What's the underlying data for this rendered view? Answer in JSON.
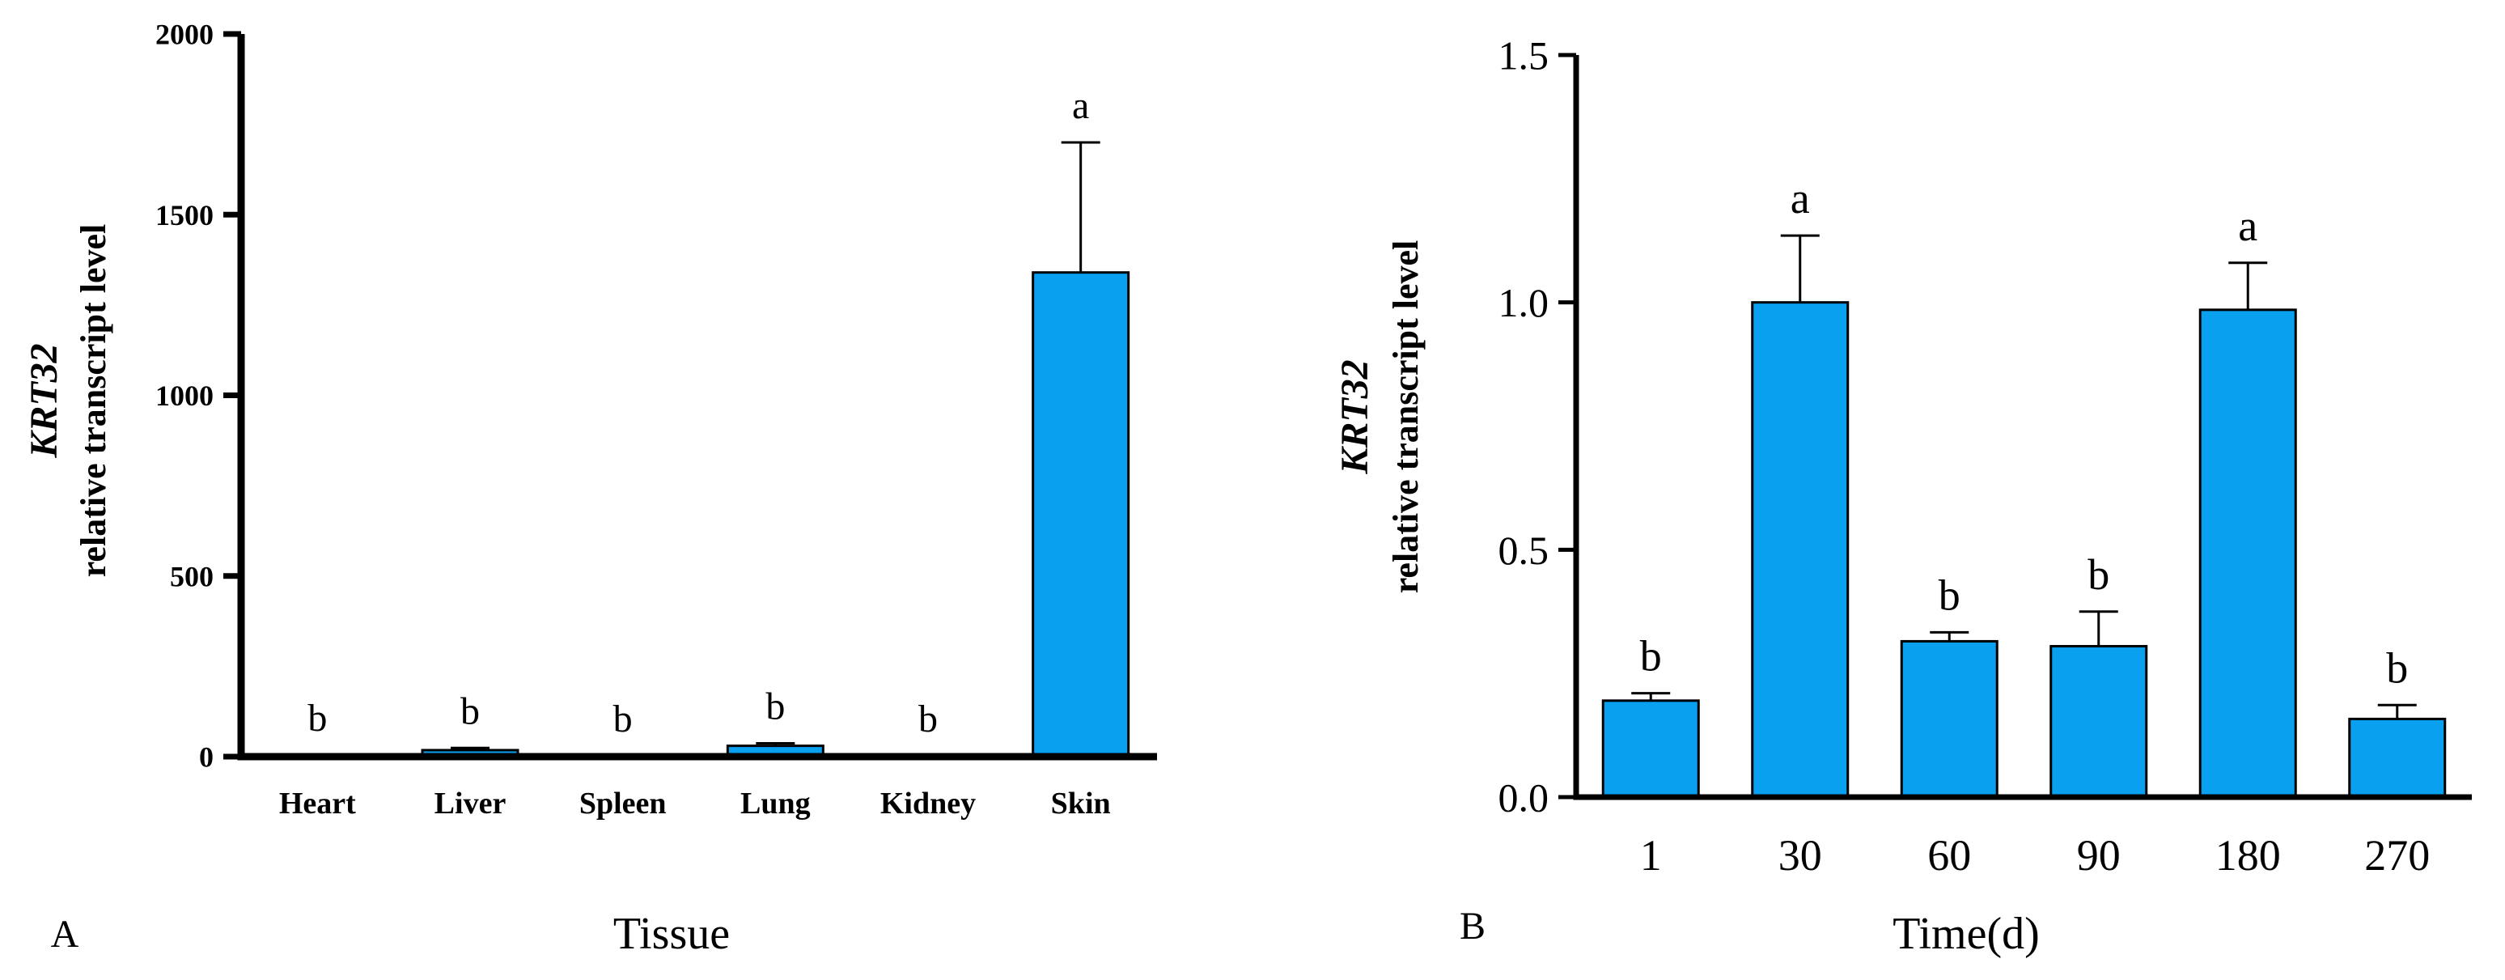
{
  "colors": {
    "bar_fill": "#0AA0F0",
    "bar_stroke": "#000000",
    "axis": "#000000"
  },
  "chart_data": [
    {
      "type": "bar",
      "panel_label": "A",
      "categories": [
        "Heart",
        "Liver",
        "Spleen",
        "Lung",
        "Kidney",
        "Skin"
      ],
      "values": [
        3,
        18,
        1,
        30,
        1,
        1340
      ],
      "errors": [
        2,
        6,
        1,
        7,
        1,
        360
      ],
      "significance": [
        "b",
        "b",
        "b",
        "b",
        "b",
        "a"
      ],
      "yticks": [
        0,
        500,
        1000,
        1500,
        2000
      ],
      "ylim": [
        0,
        2000
      ],
      "ylabel_gene": "KRT32",
      "ylabel": "relative transcript level",
      "xlabel": "Tissue",
      "title": "",
      "grid": false,
      "legend": "none"
    },
    {
      "type": "bar",
      "panel_label": "B",
      "categories": [
        "1",
        "30",
        "60",
        "90",
        "180",
        "270"
      ],
      "values": [
        0.195,
        1.0,
        0.315,
        0.305,
        0.985,
        0.158
      ],
      "errors": [
        0.015,
        0.135,
        0.018,
        0.07,
        0.095,
        0.028
      ],
      "significance": [
        "b",
        "a",
        "b",
        "b",
        "a",
        "b"
      ],
      "yticks": [
        "0.0",
        "0.5",
        "1.0",
        "1.5"
      ],
      "ylim": [
        0,
        1.5
      ],
      "ylabel_gene": "KRT32",
      "ylabel": "relative transcript level",
      "xlabel": "Time(d)",
      "title": "",
      "grid": false,
      "legend": "none"
    }
  ]
}
